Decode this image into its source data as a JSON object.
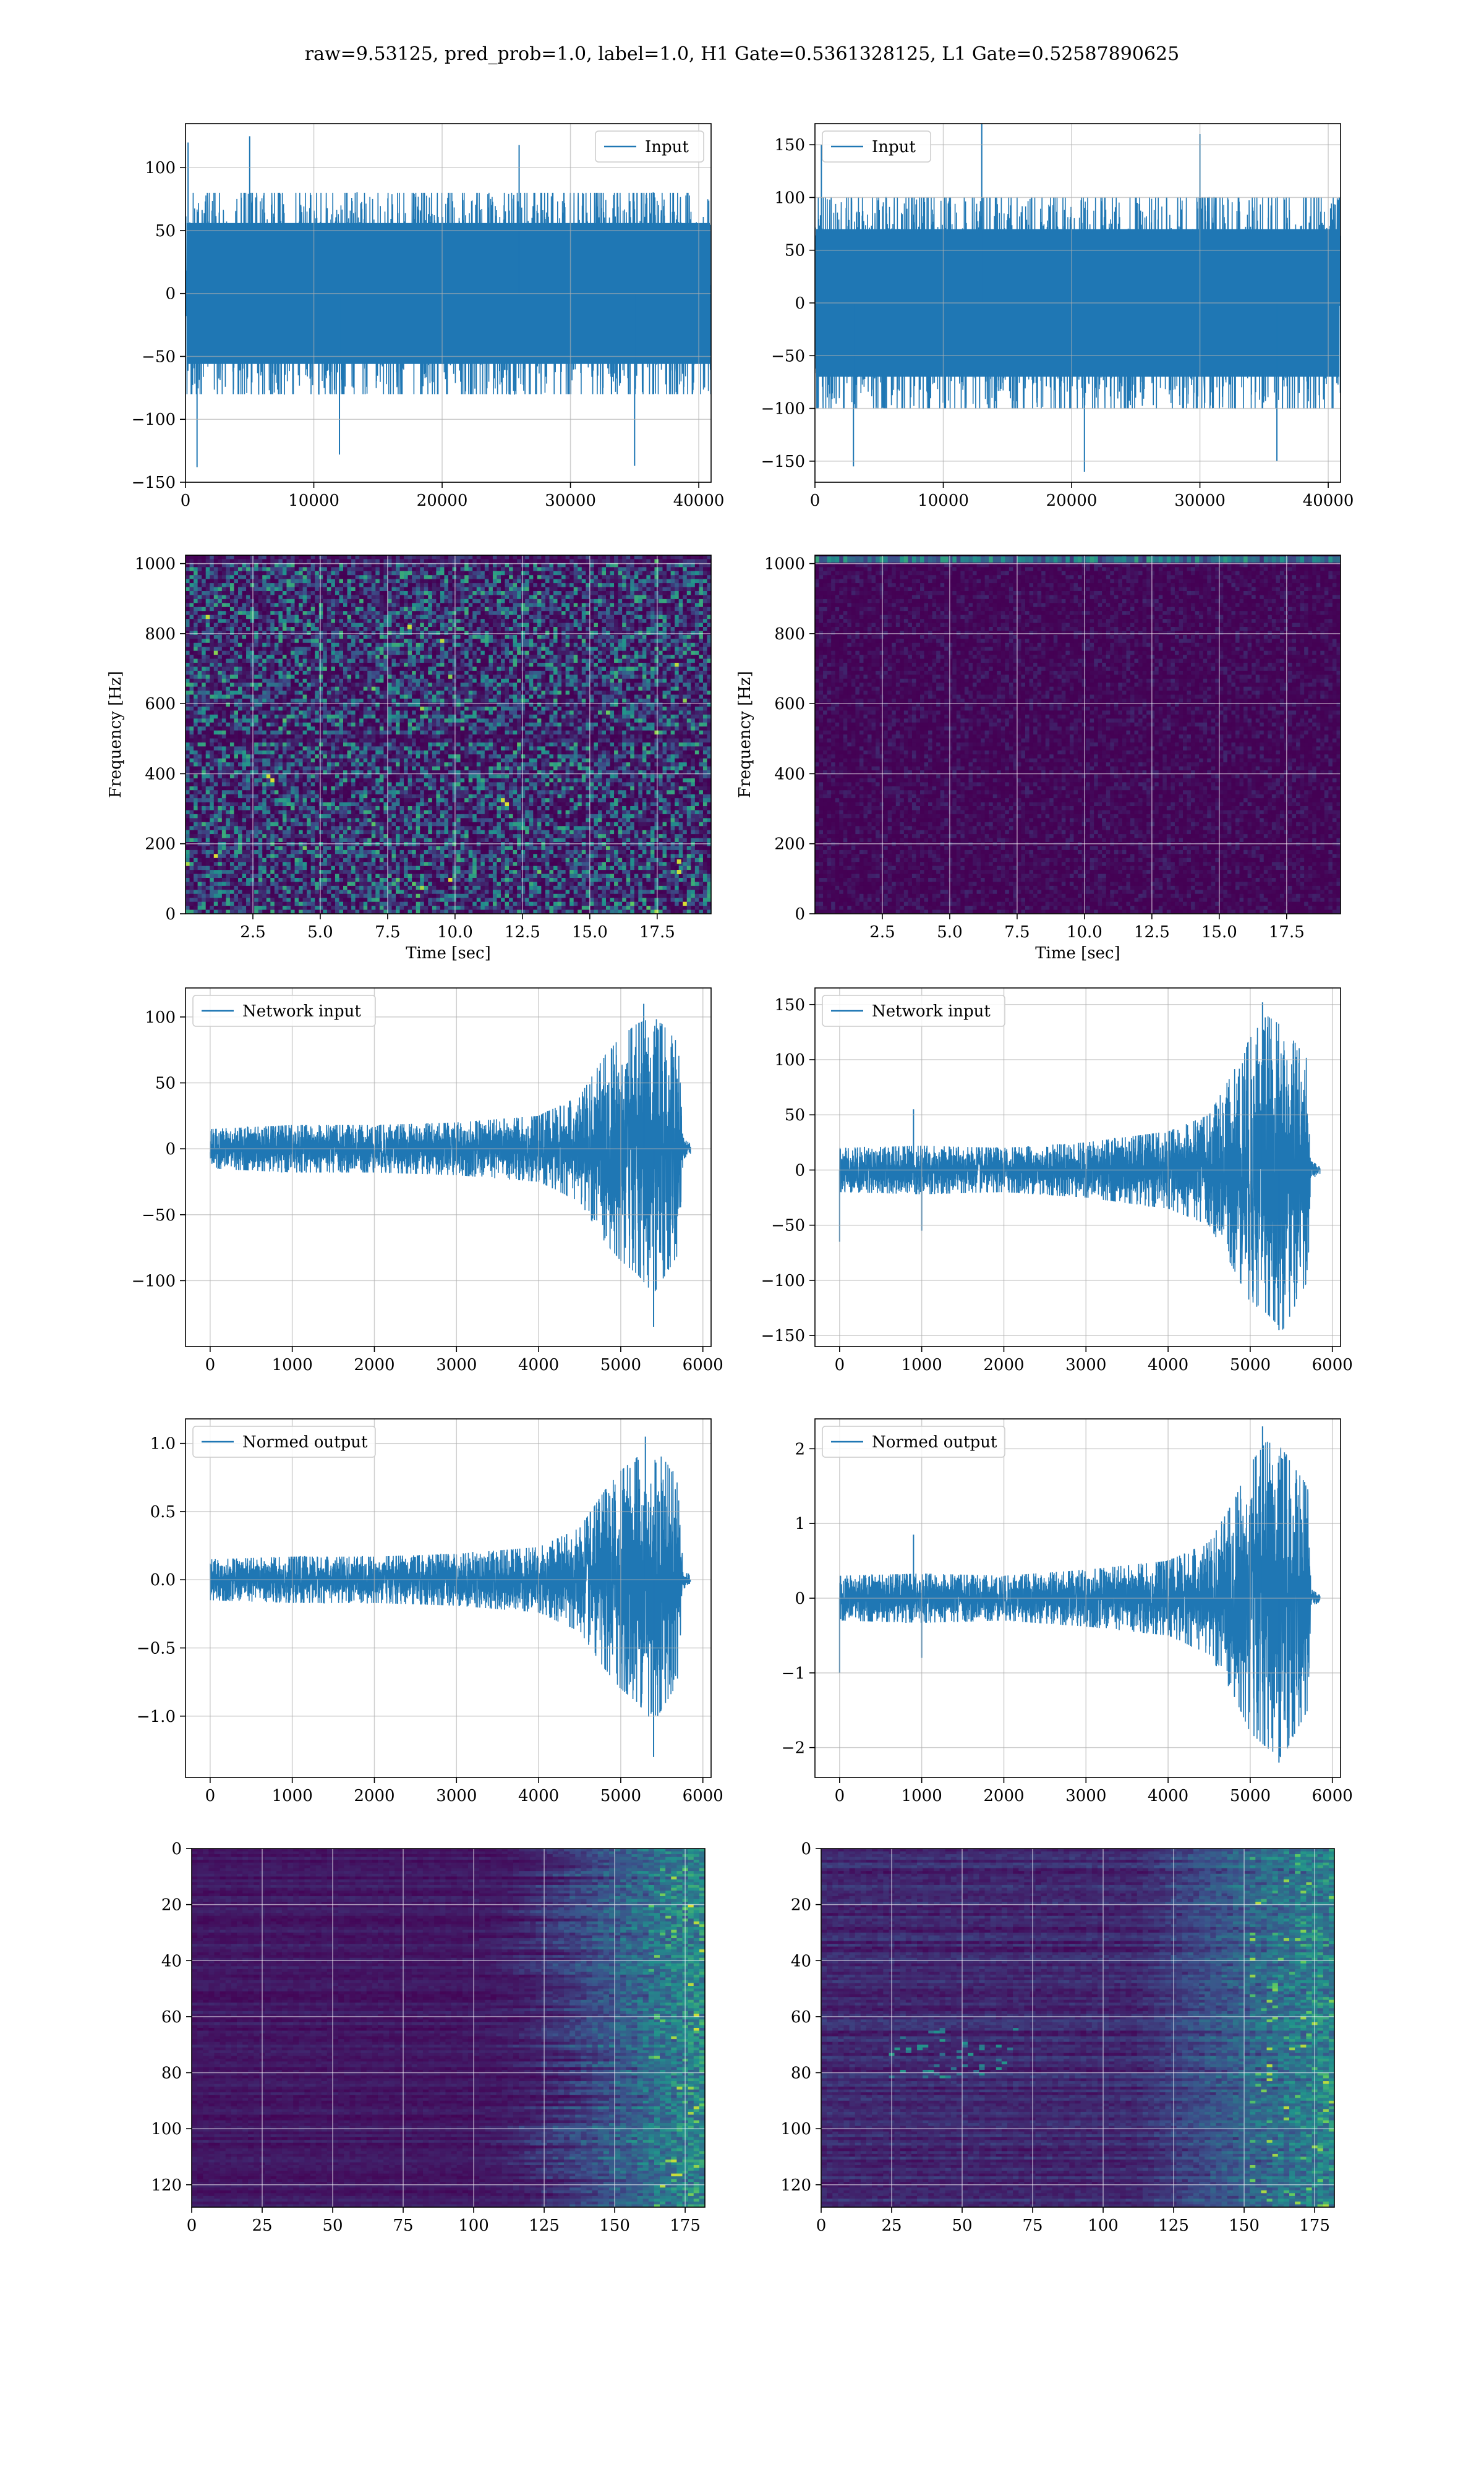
{
  "figure": {
    "suptitle": "raw=9.53125, pred_prob=1.0, label=1.0, H1 Gate=0.5361328125, L1 Gate=0.52587890625"
  },
  "colors": {
    "line": "#1f77b4",
    "grid": "#b0b0b0",
    "viridis_dark": "#440154",
    "viridis_mid": "#21918c",
    "viridis_bright": "#fde725"
  },
  "chart_data": [
    {
      "id": "h1-input",
      "type": "line",
      "legend": "Input",
      "legend_loc": "upper right",
      "xlim": [
        0,
        40960
      ],
      "ylim": [
        -150,
        135
      ],
      "xticks": [
        0,
        10000,
        20000,
        30000,
        40000
      ],
      "yticks": [
        -150,
        -100,
        -50,
        0,
        50,
        100
      ],
      "xticklabels": [
        "0",
        "10000",
        "20000",
        "30000",
        "40000"
      ],
      "yticklabels": [
        "−150",
        "−100",
        "−50",
        "0",
        "50",
        "100"
      ],
      "envelope": {
        "x": [
          0,
          40960
        ],
        "upper": [
          80,
          80
        ],
        "lower": [
          -80,
          -80
        ]
      },
      "spikes": [
        [
          200,
          120
        ],
        [
          900,
          -138
        ],
        [
          5000,
          125
        ],
        [
          12000,
          -128
        ],
        [
          26000,
          118
        ],
        [
          35000,
          -137
        ]
      ],
      "grid": true
    },
    {
      "id": "l1-input",
      "type": "line",
      "legend": "Input",
      "legend_loc": "upper left",
      "xlim": [
        0,
        40960
      ],
      "ylim": [
        -170,
        170
      ],
      "xticks": [
        0,
        10000,
        20000,
        30000,
        40000
      ],
      "yticks": [
        -150,
        -100,
        -50,
        0,
        50,
        100,
        150
      ],
      "xticklabels": [
        "0",
        "10000",
        "20000",
        "30000",
        "40000"
      ],
      "yticklabels": [
        "−150",
        "−100",
        "−50",
        "0",
        "50",
        "100",
        "150"
      ],
      "envelope": {
        "x": [
          0,
          40960
        ],
        "upper": [
          100,
          100
        ],
        "lower": [
          -100,
          -100
        ]
      },
      "spikes": [
        [
          500,
          150
        ],
        [
          3000,
          -155
        ],
        [
          13000,
          175
        ],
        [
          21000,
          -160
        ],
        [
          30000,
          160
        ],
        [
          36000,
          -150
        ]
      ],
      "grid": true
    },
    {
      "id": "h1-spectrogram",
      "type": "heatmap",
      "palette": "viridis",
      "style": "noise",
      "xlim": [
        0,
        19.5
      ],
      "ylim": [
        0,
        1024
      ],
      "xticks": [
        2.5,
        5.0,
        7.5,
        10.0,
        12.5,
        15.0,
        17.5
      ],
      "yticks": [
        0,
        200,
        400,
        600,
        800,
        1000
      ],
      "xticklabels": [
        "2.5",
        "5.0",
        "7.5",
        "10.0",
        "12.5",
        "15.0",
        "17.5"
      ],
      "yticklabels": [
        "0",
        "200",
        "400",
        "600",
        "800",
        "1000"
      ],
      "xlabel": "Time [sec]",
      "ylabel": "Frequency [Hz]",
      "grid": true
    },
    {
      "id": "l1-spectrogram",
      "type": "heatmap",
      "palette": "viridis",
      "style": "line1000",
      "xlim": [
        0,
        19.5
      ],
      "ylim": [
        0,
        1024
      ],
      "xticks": [
        2.5,
        5.0,
        7.5,
        10.0,
        12.5,
        15.0,
        17.5
      ],
      "yticks": [
        0,
        200,
        400,
        600,
        800,
        1000
      ],
      "xticklabels": [
        "2.5",
        "5.0",
        "7.5",
        "10.0",
        "12.5",
        "15.0",
        "17.5"
      ],
      "yticklabels": [
        "0",
        "200",
        "400",
        "600",
        "800",
        "1000"
      ],
      "xlabel": "Time [sec]",
      "ylabel": "Frequency [Hz]",
      "grid": true
    },
    {
      "id": "h1-network-input",
      "type": "line",
      "legend": "Network input",
      "legend_loc": "upper left",
      "xlim": [
        -300,
        6100
      ],
      "ylim": [
        -150,
        122
      ],
      "xticks": [
        0,
        1000,
        2000,
        3000,
        4000,
        5000,
        6000
      ],
      "yticks": [
        -100,
        -50,
        0,
        50,
        100
      ],
      "xticklabels": [
        "0",
        "1000",
        "2000",
        "3000",
        "4000",
        "5000",
        "6000"
      ],
      "yticklabels": [
        "−100",
        "−50",
        "0",
        "50",
        "100"
      ],
      "envelope": {
        "x": [
          0,
          1000,
          2000,
          3000,
          4000,
          4500,
          4800,
          5000,
          5200,
          5400,
          5500,
          5700,
          5760,
          5800,
          5850
        ],
        "upper": [
          15,
          18,
          18,
          20,
          25,
          40,
          70,
          85,
          95,
          100,
          95,
          80,
          8,
          6,
          4
        ],
        "lower": [
          -15,
          -18,
          -18,
          -20,
          -25,
          -40,
          -70,
          -85,
          -95,
          -110,
          -100,
          -80,
          -8,
          -6,
          -4
        ]
      },
      "spikes": [
        [
          5400,
          -135
        ],
        [
          5280,
          110
        ]
      ],
      "grid": true
    },
    {
      "id": "l1-network-input",
      "type": "line",
      "legend": "Network input",
      "legend_loc": "upper left",
      "xlim": [
        -300,
        6100
      ],
      "ylim": [
        -160,
        165
      ],
      "xticks": [
        0,
        1000,
        2000,
        3000,
        4000,
        5000,
        6000
      ],
      "yticks": [
        -150,
        -100,
        -50,
        0,
        50,
        100,
        150
      ],
      "xticklabels": [
        "0",
        "1000",
        "2000",
        "3000",
        "4000",
        "5000",
        "6000"
      ],
      "yticklabels": [
        "−150",
        "−100",
        "−50",
        "0",
        "50",
        "100",
        "150"
      ],
      "envelope": {
        "x": [
          0,
          1000,
          2000,
          3000,
          4000,
          4500,
          4800,
          5000,
          5200,
          5400,
          5500,
          5700,
          5740,
          5800,
          5850
        ],
        "upper": [
          20,
          22,
          20,
          25,
          35,
          50,
          90,
          120,
          140,
          130,
          120,
          100,
          8,
          6,
          4
        ],
        "lower": [
          -20,
          -22,
          -20,
          -25,
          -35,
          -50,
          -90,
          -120,
          -130,
          -145,
          -130,
          -100,
          -8,
          -6,
          -4
        ]
      },
      "spikes": [
        [
          0,
          -65
        ],
        [
          900,
          55
        ],
        [
          1000,
          -55
        ],
        [
          5150,
          152
        ],
        [
          5350,
          -145
        ]
      ],
      "grid": true
    },
    {
      "id": "h1-normed-output",
      "type": "line",
      "legend": "Normed output",
      "legend_loc": "upper left",
      "xlim": [
        -300,
        6100
      ],
      "ylim": [
        -1.45,
        1.18
      ],
      "xticks": [
        0,
        1000,
        2000,
        3000,
        4000,
        5000,
        6000
      ],
      "yticks": [
        -1.0,
        -0.5,
        0.0,
        0.5,
        1.0
      ],
      "xticklabels": [
        "0",
        "1000",
        "2000",
        "3000",
        "4000",
        "5000",
        "6000"
      ],
      "yticklabels": [
        "−1.0",
        "−0.5",
        "0.0",
        "0.5",
        "1.0"
      ],
      "envelope": {
        "x": [
          0,
          1000,
          2000,
          3000,
          4000,
          4500,
          4800,
          5000,
          5200,
          5400,
          5500,
          5700,
          5760,
          5800,
          5850
        ],
        "upper": [
          0.15,
          0.17,
          0.17,
          0.19,
          0.24,
          0.38,
          0.65,
          0.8,
          0.9,
          0.95,
          0.9,
          0.75,
          0.07,
          0.05,
          0.04
        ],
        "lower": [
          -0.15,
          -0.17,
          -0.17,
          -0.19,
          -0.24,
          -0.38,
          -0.65,
          -0.8,
          -0.9,
          -1.05,
          -0.95,
          -0.75,
          -0.07,
          -0.05,
          -0.04
        ]
      },
      "spikes": [
        [
          5400,
          -1.3
        ],
        [
          5300,
          1.05
        ]
      ],
      "grid": true
    },
    {
      "id": "l1-normed-output",
      "type": "line",
      "legend": "Normed output",
      "legend_loc": "upper left",
      "xlim": [
        -300,
        6100
      ],
      "ylim": [
        -2.4,
        2.4
      ],
      "xticks": [
        0,
        1000,
        2000,
        3000,
        4000,
        5000,
        6000
      ],
      "yticks": [
        -2,
        -1,
        0,
        1,
        2
      ],
      "xticklabels": [
        "0",
        "1000",
        "2000",
        "3000",
        "4000",
        "5000",
        "6000"
      ],
      "yticklabels": [
        "−2",
        "−1",
        "0",
        "1",
        "2"
      ],
      "envelope": {
        "x": [
          0,
          1000,
          2000,
          3000,
          4000,
          4500,
          4800,
          5000,
          5200,
          5400,
          5500,
          5700,
          5740,
          5800,
          5850
        ],
        "upper": [
          0.3,
          0.33,
          0.3,
          0.38,
          0.5,
          0.75,
          1.3,
          1.8,
          2.1,
          2.0,
          1.8,
          1.5,
          0.12,
          0.08,
          0.06
        ],
        "lower": [
          -0.3,
          -0.33,
          -0.3,
          -0.38,
          -0.5,
          -0.75,
          -1.3,
          -1.8,
          -2.0,
          -2.15,
          -1.9,
          -1.5,
          -0.12,
          -0.08,
          -0.06
        ]
      },
      "spikes": [
        [
          0,
          -1.0
        ],
        [
          900,
          0.85
        ],
        [
          1000,
          -0.8
        ],
        [
          5150,
          2.3
        ],
        [
          5350,
          -2.2
        ]
      ],
      "grid": true
    },
    {
      "id": "h1-feature-map",
      "type": "heatmap",
      "palette": "viridis",
      "style": "feature",
      "variant": 1,
      "xlim": [
        0,
        182
      ],
      "ylim": [
        128,
        0
      ],
      "xticks": [
        0,
        25,
        50,
        75,
        100,
        125,
        150,
        175
      ],
      "yticks": [
        0,
        20,
        40,
        60,
        80,
        100,
        120
      ],
      "xticklabels": [
        "0",
        "25",
        "50",
        "75",
        "100",
        "125",
        "150",
        "175"
      ],
      "yticklabels": [
        "0",
        "20",
        "40",
        "60",
        "80",
        "100",
        "120"
      ],
      "grid": true
    },
    {
      "id": "l1-feature-map",
      "type": "heatmap",
      "palette": "viridis",
      "style": "feature",
      "variant": 2,
      "xlim": [
        0,
        182
      ],
      "ylim": [
        128,
        0
      ],
      "xticks": [
        0,
        25,
        50,
        75,
        100,
        125,
        150,
        175
      ],
      "yticks": [
        0,
        20,
        40,
        60,
        80,
        100,
        120
      ],
      "xticklabels": [
        "0",
        "25",
        "50",
        "75",
        "100",
        "125",
        "150",
        "175"
      ],
      "yticklabels": [
        "0",
        "20",
        "40",
        "60",
        "80",
        "100",
        "120"
      ],
      "grid": true
    }
  ]
}
